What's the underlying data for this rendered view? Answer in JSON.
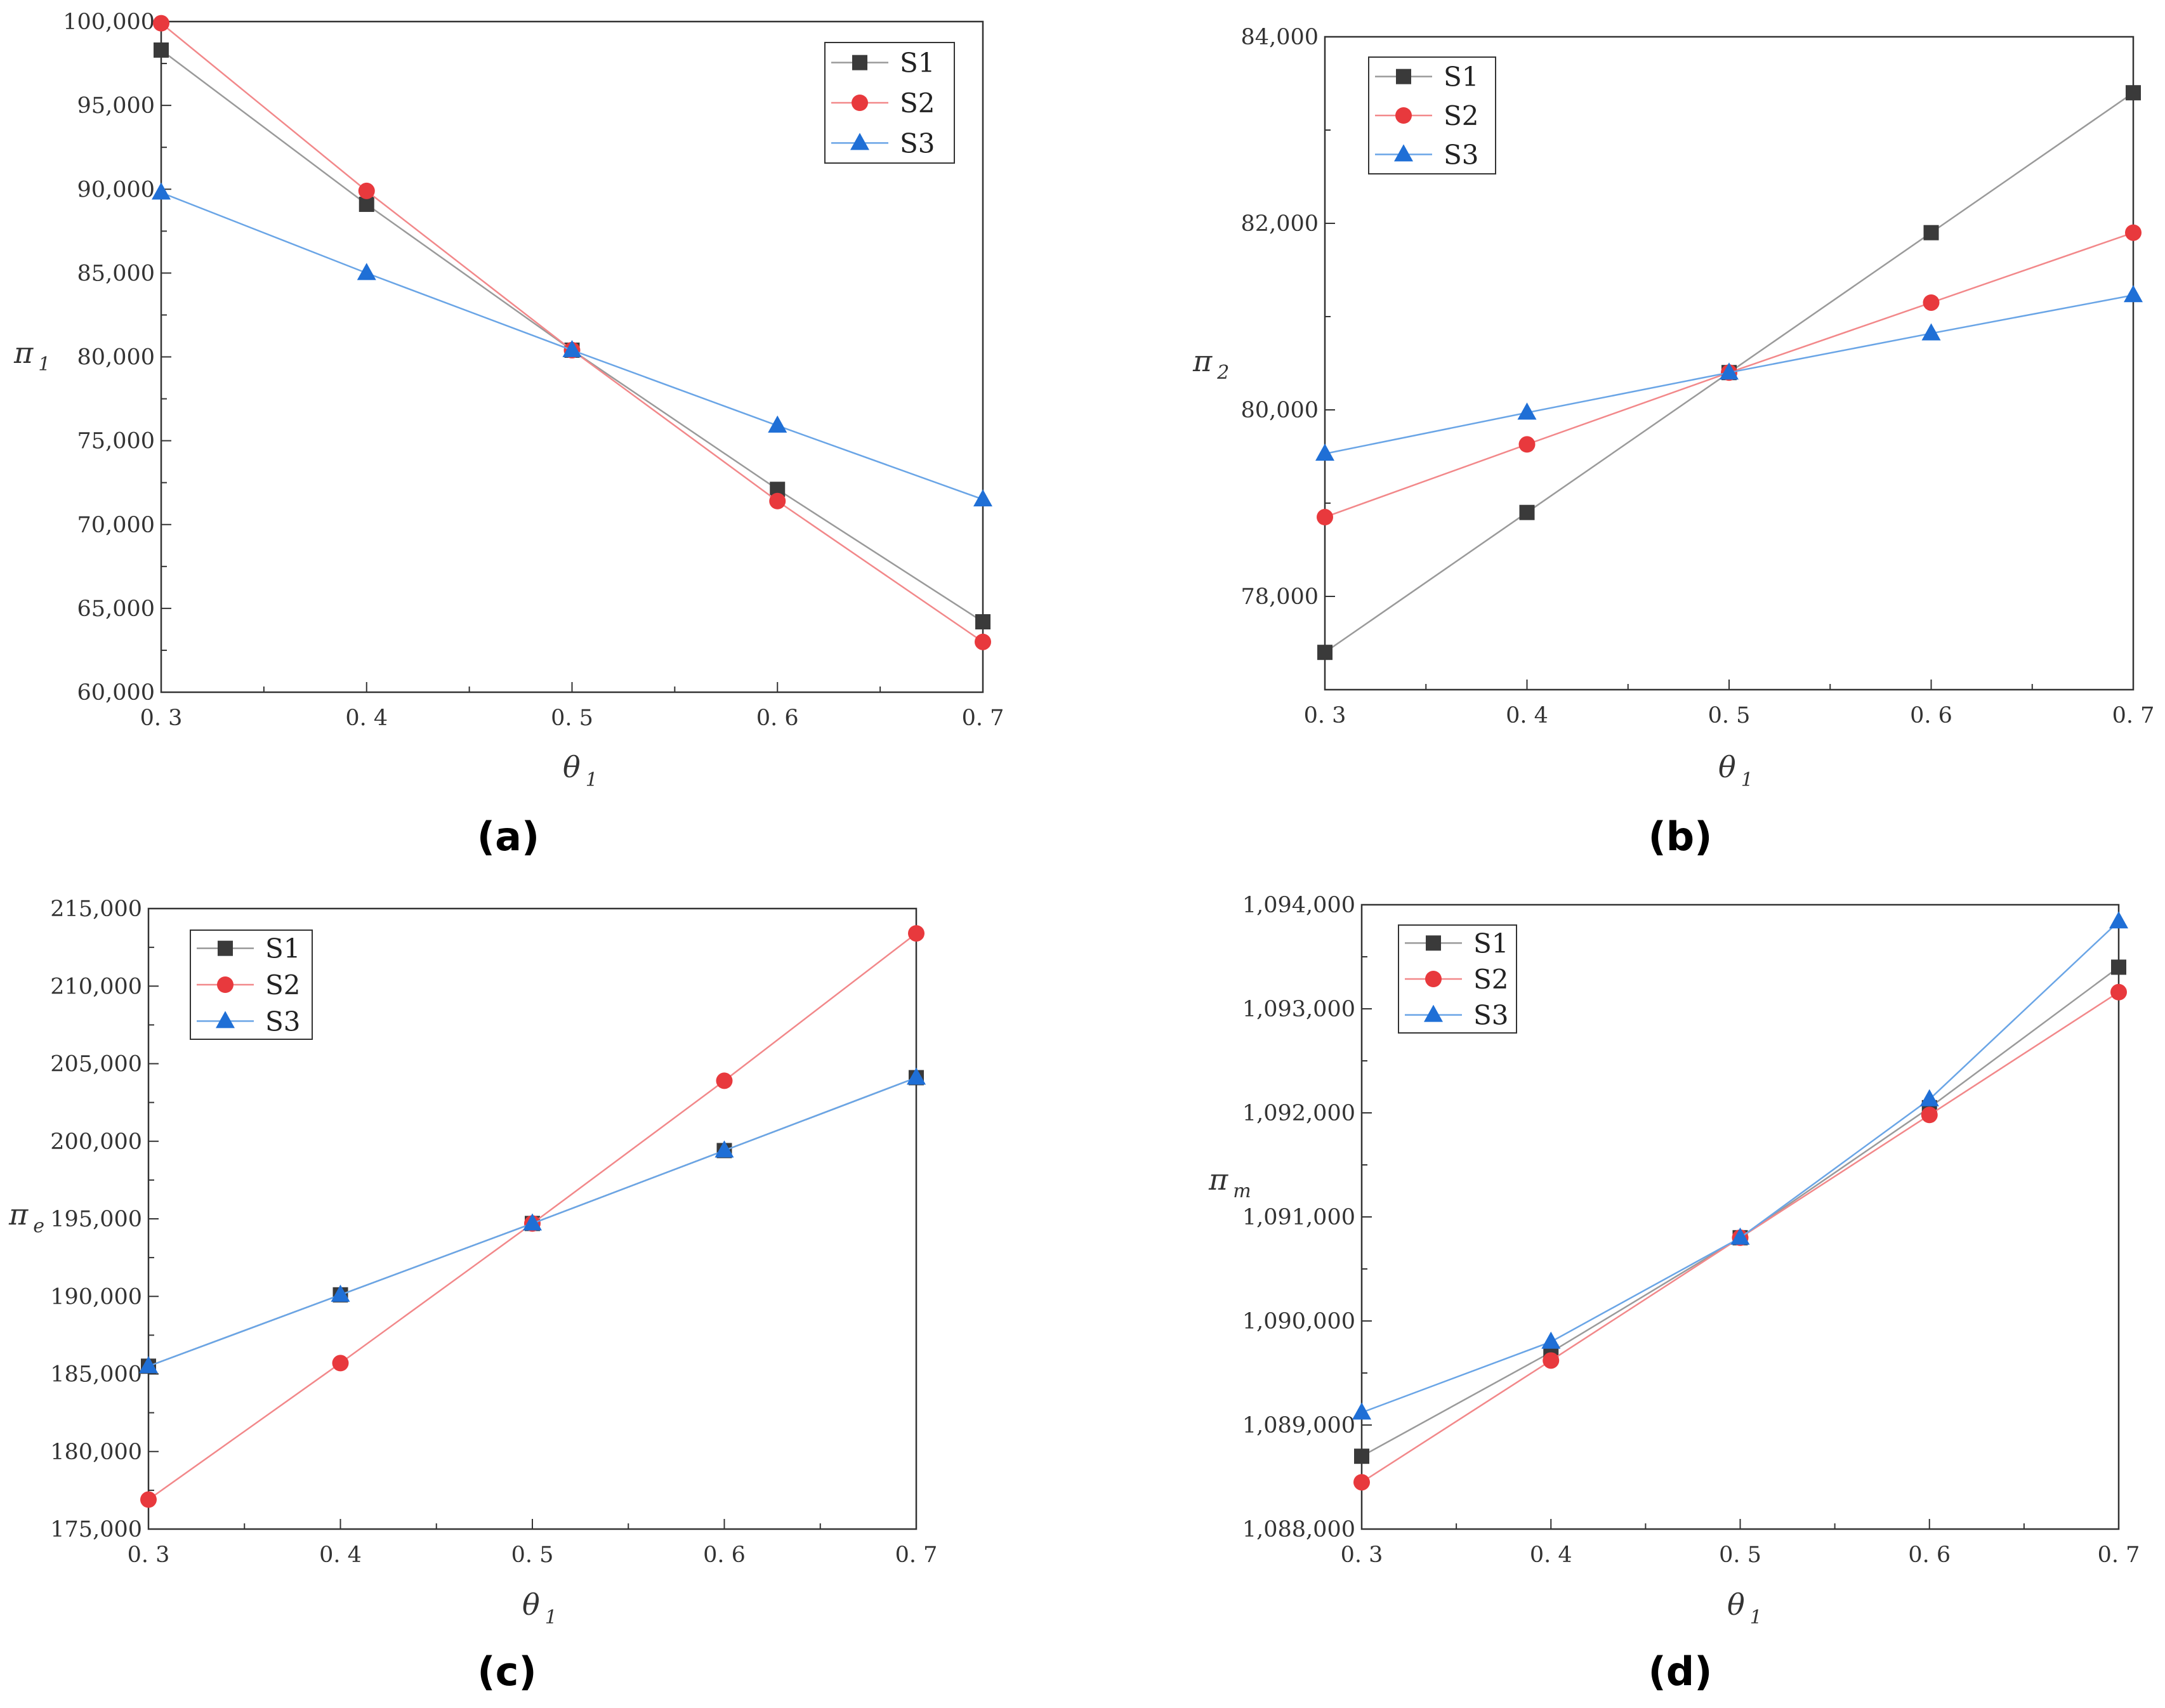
{
  "figure": {
    "series_names": [
      "S1",
      "S2",
      "S3"
    ]
  },
  "style": {
    "colors": {
      "S1": "#3a3a3a",
      "S2": "#e8393d",
      "S3": "#1f6fd6"
    },
    "line_colors": {
      "S1": "#9a9a9a",
      "S2": "#f2888a",
      "S3": "#6aa5e6"
    },
    "markers": {
      "S1": "square",
      "S2": "circle",
      "S3": "triangle"
    },
    "axis_color": "#333333"
  },
  "chart_data": [
    {
      "panel_label": "(a)",
      "type": "line",
      "ylabel": {
        "symbol": "π",
        "sub": "1"
      },
      "xlabel": {
        "symbol": "θ",
        "sub": "1"
      },
      "xlim": [
        0.3,
        0.7
      ],
      "ylim": [
        60000,
        100000
      ],
      "xticks": [
        0.3,
        0.4,
        0.5,
        0.6,
        0.7
      ],
      "xtick_labels": [
        "0. 3",
        "0. 4",
        "0. 5",
        "0. 6",
        "0. 7"
      ],
      "yticks": [
        60000,
        65000,
        70000,
        75000,
        80000,
        85000,
        90000,
        95000,
        100000
      ],
      "ytick_labels": [
        "60,000",
        "65,000",
        "70,000",
        "75,000",
        "80,000",
        "85,000",
        "90,000",
        "95,000",
        "100,000"
      ],
      "legend_position": "top-right",
      "x": [
        0.3,
        0.4,
        0.5,
        0.6,
        0.7
      ],
      "series": [
        {
          "name": "S1",
          "values": [
            98300,
            89100,
            80400,
            72100,
            64200
          ]
        },
        {
          "name": "S2",
          "values": [
            99900,
            89900,
            80400,
            71400,
            63000
          ]
        },
        {
          "name": "S3",
          "values": [
            89800,
            85000,
            80400,
            75900,
            71500
          ]
        }
      ]
    },
    {
      "panel_label": "(b)",
      "type": "line",
      "ylabel": {
        "symbol": "π",
        "sub": "2"
      },
      "xlabel": {
        "symbol": "θ",
        "sub": "1"
      },
      "xlim": [
        0.3,
        0.7
      ],
      "ylim": [
        77000,
        84000
      ],
      "xticks": [
        0.3,
        0.4,
        0.5,
        0.6,
        0.7
      ],
      "xtick_labels": [
        "0. 3",
        "0. 4",
        "0. 5",
        "0. 6",
        "0. 7"
      ],
      "yticks": [
        78000,
        80000,
        82000,
        84000
      ],
      "ytick_labels": [
        "78,000",
        "80,000",
        "82,000",
        "84,000"
      ],
      "legend_position": "top-left",
      "x": [
        0.3,
        0.4,
        0.5,
        0.6,
        0.7
      ],
      "series": [
        {
          "name": "S1",
          "values": [
            77400,
            78900,
            80400,
            81900,
            83400
          ]
        },
        {
          "name": "S2",
          "values": [
            78850,
            79630,
            80400,
            81150,
            81900
          ]
        },
        {
          "name": "S3",
          "values": [
            79530,
            79970,
            80400,
            80820,
            81230
          ]
        }
      ]
    },
    {
      "panel_label": "(c)",
      "type": "line",
      "ylabel": {
        "symbol": "π",
        "sub": "e"
      },
      "xlabel": {
        "symbol": "θ",
        "sub": "1"
      },
      "xlim": [
        0.3,
        0.7
      ],
      "ylim": [
        175000,
        215000
      ],
      "xticks": [
        0.3,
        0.4,
        0.5,
        0.6,
        0.7
      ],
      "xtick_labels": [
        "0. 3",
        "0. 4",
        "0. 5",
        "0. 6",
        "0. 7"
      ],
      "yticks": [
        175000,
        180000,
        185000,
        190000,
        195000,
        200000,
        205000,
        210000,
        215000
      ],
      "ytick_labels": [
        "175,000",
        "180,000",
        "185,000",
        "190,000",
        "195,000",
        "200,000",
        "205,000",
        "210,000",
        "215,000"
      ],
      "legend_position": "top-left",
      "x": [
        0.3,
        0.4,
        0.5,
        0.6,
        0.7
      ],
      "series": [
        {
          "name": "S1",
          "values": [
            185500,
            190100,
            194700,
            199400,
            204100
          ]
        },
        {
          "name": "S2",
          "values": [
            176900,
            185700,
            194700,
            203900,
            213400
          ]
        },
        {
          "name": "S3",
          "values": [
            185500,
            190100,
            194700,
            199400,
            204100
          ]
        }
      ]
    },
    {
      "panel_label": "(d)",
      "type": "line",
      "ylabel": {
        "symbol": "π",
        "sub": "m"
      },
      "xlabel": {
        "symbol": "θ",
        "sub": "1"
      },
      "xlim": [
        0.3,
        0.7
      ],
      "ylim": [
        1088000,
        1094000
      ],
      "xticks": [
        0.3,
        0.4,
        0.5,
        0.6,
        0.7
      ],
      "xtick_labels": [
        "0. 3",
        "0. 4",
        "0. 5",
        "0. 6",
        "0. 7"
      ],
      "yticks": [
        1088000,
        1089000,
        1090000,
        1091000,
        1092000,
        1093000,
        1094000
      ],
      "ytick_labels": [
        "1,088,000",
        "1,089,000",
        "1,090,000",
        "1,091,000",
        "1,092,000",
        "1,093,000",
        "1,094,000"
      ],
      "legend_position": "top-left",
      "x": [
        0.3,
        0.4,
        0.5,
        0.6,
        0.7
      ],
      "series": [
        {
          "name": "S1",
          "values": [
            1088700,
            1089700,
            1090800,
            1092050,
            1093400
          ]
        },
        {
          "name": "S2",
          "values": [
            1088450,
            1089620,
            1090800,
            1091980,
            1093160
          ]
        },
        {
          "name": "S3",
          "values": [
            1089120,
            1089800,
            1090800,
            1092130,
            1093840
          ]
        }
      ]
    }
  ]
}
